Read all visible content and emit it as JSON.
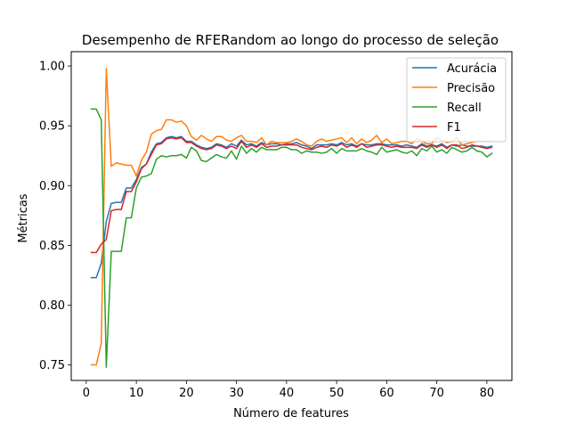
{
  "chart_data": {
    "type": "line",
    "title": "Desempenho de RFERandom ao longo do processo de seleção",
    "xlabel": "Número de features",
    "ylabel": "Métricas",
    "xlim": [
      -3,
      85
    ],
    "ylim": [
      0.737,
      1.012
    ],
    "xticks": [
      0,
      10,
      20,
      30,
      40,
      50,
      60,
      70,
      80
    ],
    "yticks": [
      0.75,
      0.8,
      0.85,
      0.9,
      0.95,
      1.0
    ],
    "ytick_labels": [
      "0.75",
      "0.80",
      "0.85",
      "0.90",
      "0.95",
      "1.00"
    ],
    "grid": false,
    "legend_position": "top-right",
    "x": [
      1,
      2,
      3,
      4,
      5,
      6,
      7,
      8,
      9,
      10,
      11,
      12,
      13,
      14,
      15,
      16,
      17,
      18,
      19,
      20,
      21,
      22,
      23,
      24,
      25,
      26,
      27,
      28,
      29,
      30,
      31,
      32,
      33,
      34,
      35,
      36,
      37,
      38,
      39,
      40,
      41,
      42,
      43,
      44,
      45,
      46,
      47,
      48,
      49,
      50,
      51,
      52,
      53,
      54,
      55,
      56,
      57,
      58,
      59,
      60,
      61,
      62,
      63,
      64,
      65,
      66,
      67,
      68,
      69,
      70,
      71,
      72,
      73,
      74,
      75,
      76,
      77,
      78,
      79,
      80,
      81
    ],
    "series": [
      {
        "name": "Acurácia",
        "color": "#1f77b4",
        "values": [
          0.823,
          0.823,
          0.835,
          0.87,
          0.885,
          0.886,
          0.886,
          0.898,
          0.898,
          0.905,
          0.915,
          0.918,
          0.928,
          0.935,
          0.936,
          0.94,
          0.941,
          0.94,
          0.941,
          0.937,
          0.937,
          0.934,
          0.932,
          0.931,
          0.932,
          0.935,
          0.934,
          0.932,
          0.935,
          0.933,
          0.938,
          0.934,
          0.935,
          0.933,
          0.936,
          0.934,
          0.935,
          0.935,
          0.934,
          0.935,
          0.935,
          0.936,
          0.934,
          0.933,
          0.931,
          0.934,
          0.934,
          0.934,
          0.935,
          0.934,
          0.936,
          0.934,
          0.935,
          0.933,
          0.935,
          0.934,
          0.934,
          0.935,
          0.935,
          0.934,
          0.934,
          0.934,
          0.933,
          0.934,
          0.933,
          0.932,
          0.935,
          0.933,
          0.934,
          0.933,
          0.935,
          0.932,
          0.934,
          0.933,
          0.934,
          0.933,
          0.933,
          0.933,
          0.933,
          0.932,
          0.933
        ]
      },
      {
        "name": "Precisão",
        "color": "#ff7f0e",
        "values": [
          0.75,
          0.75,
          0.768,
          0.998,
          0.916,
          0.919,
          0.918,
          0.917,
          0.917,
          0.908,
          0.921,
          0.928,
          0.943,
          0.946,
          0.947,
          0.955,
          0.955,
          0.953,
          0.954,
          0.95,
          0.941,
          0.938,
          0.942,
          0.939,
          0.937,
          0.941,
          0.941,
          0.938,
          0.937,
          0.94,
          0.942,
          0.937,
          0.937,
          0.936,
          0.94,
          0.934,
          0.937,
          0.936,
          0.936,
          0.936,
          0.937,
          0.939,
          0.937,
          0.934,
          0.933,
          0.937,
          0.939,
          0.937,
          0.938,
          0.939,
          0.94,
          0.936,
          0.94,
          0.935,
          0.939,
          0.936,
          0.938,
          0.942,
          0.936,
          0.939,
          0.935,
          0.936,
          0.937,
          0.937,
          0.935,
          0.939,
          0.937,
          0.935,
          0.935,
          0.94,
          0.938,
          0.936,
          0.937,
          0.94,
          0.934,
          0.935,
          0.936,
          0.937,
          0.937,
          0.937,
          0.937
        ]
      },
      {
        "name": "Recall",
        "color": "#2ca02c",
        "values": [
          0.964,
          0.964,
          0.955,
          0.748,
          0.845,
          0.845,
          0.845,
          0.873,
          0.873,
          0.898,
          0.907,
          0.908,
          0.91,
          0.922,
          0.925,
          0.924,
          0.925,
          0.925,
          0.926,
          0.923,
          0.932,
          0.929,
          0.921,
          0.92,
          0.923,
          0.926,
          0.924,
          0.923,
          0.929,
          0.922,
          0.933,
          0.927,
          0.931,
          0.928,
          0.932,
          0.93,
          0.93,
          0.93,
          0.932,
          0.932,
          0.93,
          0.93,
          0.927,
          0.929,
          0.928,
          0.928,
          0.927,
          0.928,
          0.931,
          0.927,
          0.931,
          0.929,
          0.929,
          0.929,
          0.931,
          0.929,
          0.928,
          0.926,
          0.932,
          0.928,
          0.929,
          0.93,
          0.928,
          0.927,
          0.929,
          0.925,
          0.931,
          0.929,
          0.933,
          0.928,
          0.93,
          0.927,
          0.932,
          0.93,
          0.928,
          0.929,
          0.932,
          0.929,
          0.928,
          0.924,
          0.927
        ]
      },
      {
        "name": "F1",
        "color": "#d62728",
        "values": [
          0.844,
          0.844,
          0.851,
          0.855,
          0.879,
          0.88,
          0.88,
          0.895,
          0.895,
          0.903,
          0.914,
          0.918,
          0.926,
          0.934,
          0.935,
          0.939,
          0.94,
          0.939,
          0.94,
          0.936,
          0.936,
          0.933,
          0.931,
          0.93,
          0.931,
          0.934,
          0.933,
          0.931,
          0.933,
          0.931,
          0.937,
          0.932,
          0.934,
          0.932,
          0.935,
          0.932,
          0.933,
          0.933,
          0.934,
          0.934,
          0.934,
          0.934,
          0.932,
          0.931,
          0.93,
          0.932,
          0.933,
          0.932,
          0.934,
          0.933,
          0.935,
          0.932,
          0.934,
          0.932,
          0.935,
          0.932,
          0.933,
          0.934,
          0.934,
          0.933,
          0.932,
          0.933,
          0.932,
          0.932,
          0.932,
          0.931,
          0.934,
          0.932,
          0.934,
          0.932,
          0.934,
          0.931,
          0.934,
          0.934,
          0.931,
          0.932,
          0.934,
          0.933,
          0.932,
          0.931,
          0.932
        ]
      }
    ]
  }
}
